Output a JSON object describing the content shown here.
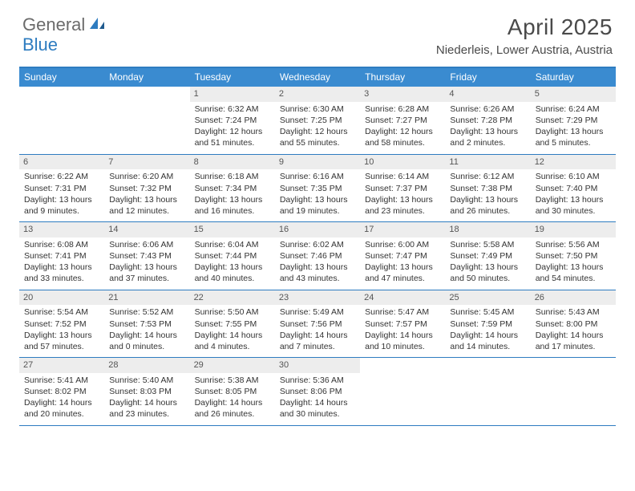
{
  "logo": {
    "text1": "General",
    "text2": "Blue"
  },
  "title": "April 2025",
  "location": "Niederleis, Lower Austria, Austria",
  "colors": {
    "header_bar": "#3a8bd0",
    "rule": "#2e7cc0",
    "daynum_bg": "#ededed",
    "text": "#333333",
    "title_text": "#4a4a4a"
  },
  "day_names": [
    "Sunday",
    "Monday",
    "Tuesday",
    "Wednesday",
    "Thursday",
    "Friday",
    "Saturday"
  ],
  "weeks": [
    [
      null,
      null,
      {
        "n": "1",
        "sr": "6:32 AM",
        "ss": "7:24 PM",
        "dl": "12 hours and 51 minutes."
      },
      {
        "n": "2",
        "sr": "6:30 AM",
        "ss": "7:25 PM",
        "dl": "12 hours and 55 minutes."
      },
      {
        "n": "3",
        "sr": "6:28 AM",
        "ss": "7:27 PM",
        "dl": "12 hours and 58 minutes."
      },
      {
        "n": "4",
        "sr": "6:26 AM",
        "ss": "7:28 PM",
        "dl": "13 hours and 2 minutes."
      },
      {
        "n": "5",
        "sr": "6:24 AM",
        "ss": "7:29 PM",
        "dl": "13 hours and 5 minutes."
      }
    ],
    [
      {
        "n": "6",
        "sr": "6:22 AM",
        "ss": "7:31 PM",
        "dl": "13 hours and 9 minutes."
      },
      {
        "n": "7",
        "sr": "6:20 AM",
        "ss": "7:32 PM",
        "dl": "13 hours and 12 minutes."
      },
      {
        "n": "8",
        "sr": "6:18 AM",
        "ss": "7:34 PM",
        "dl": "13 hours and 16 minutes."
      },
      {
        "n": "9",
        "sr": "6:16 AM",
        "ss": "7:35 PM",
        "dl": "13 hours and 19 minutes."
      },
      {
        "n": "10",
        "sr": "6:14 AM",
        "ss": "7:37 PM",
        "dl": "13 hours and 23 minutes."
      },
      {
        "n": "11",
        "sr": "6:12 AM",
        "ss": "7:38 PM",
        "dl": "13 hours and 26 minutes."
      },
      {
        "n": "12",
        "sr": "6:10 AM",
        "ss": "7:40 PM",
        "dl": "13 hours and 30 minutes."
      }
    ],
    [
      {
        "n": "13",
        "sr": "6:08 AM",
        "ss": "7:41 PM",
        "dl": "13 hours and 33 minutes."
      },
      {
        "n": "14",
        "sr": "6:06 AM",
        "ss": "7:43 PM",
        "dl": "13 hours and 37 minutes."
      },
      {
        "n": "15",
        "sr": "6:04 AM",
        "ss": "7:44 PM",
        "dl": "13 hours and 40 minutes."
      },
      {
        "n": "16",
        "sr": "6:02 AM",
        "ss": "7:46 PM",
        "dl": "13 hours and 43 minutes."
      },
      {
        "n": "17",
        "sr": "6:00 AM",
        "ss": "7:47 PM",
        "dl": "13 hours and 47 minutes."
      },
      {
        "n": "18",
        "sr": "5:58 AM",
        "ss": "7:49 PM",
        "dl": "13 hours and 50 minutes."
      },
      {
        "n": "19",
        "sr": "5:56 AM",
        "ss": "7:50 PM",
        "dl": "13 hours and 54 minutes."
      }
    ],
    [
      {
        "n": "20",
        "sr": "5:54 AM",
        "ss": "7:52 PM",
        "dl": "13 hours and 57 minutes."
      },
      {
        "n": "21",
        "sr": "5:52 AM",
        "ss": "7:53 PM",
        "dl": "14 hours and 0 minutes."
      },
      {
        "n": "22",
        "sr": "5:50 AM",
        "ss": "7:55 PM",
        "dl": "14 hours and 4 minutes."
      },
      {
        "n": "23",
        "sr": "5:49 AM",
        "ss": "7:56 PM",
        "dl": "14 hours and 7 minutes."
      },
      {
        "n": "24",
        "sr": "5:47 AM",
        "ss": "7:57 PM",
        "dl": "14 hours and 10 minutes."
      },
      {
        "n": "25",
        "sr": "5:45 AM",
        "ss": "7:59 PM",
        "dl": "14 hours and 14 minutes."
      },
      {
        "n": "26",
        "sr": "5:43 AM",
        "ss": "8:00 PM",
        "dl": "14 hours and 17 minutes."
      }
    ],
    [
      {
        "n": "27",
        "sr": "5:41 AM",
        "ss": "8:02 PM",
        "dl": "14 hours and 20 minutes."
      },
      {
        "n": "28",
        "sr": "5:40 AM",
        "ss": "8:03 PM",
        "dl": "14 hours and 23 minutes."
      },
      {
        "n": "29",
        "sr": "5:38 AM",
        "ss": "8:05 PM",
        "dl": "14 hours and 26 minutes."
      },
      {
        "n": "30",
        "sr": "5:36 AM",
        "ss": "8:06 PM",
        "dl": "14 hours and 30 minutes."
      },
      null,
      null,
      null
    ]
  ],
  "labels": {
    "sunrise": "Sunrise: ",
    "sunset": "Sunset: ",
    "daylight": "Daylight: "
  }
}
